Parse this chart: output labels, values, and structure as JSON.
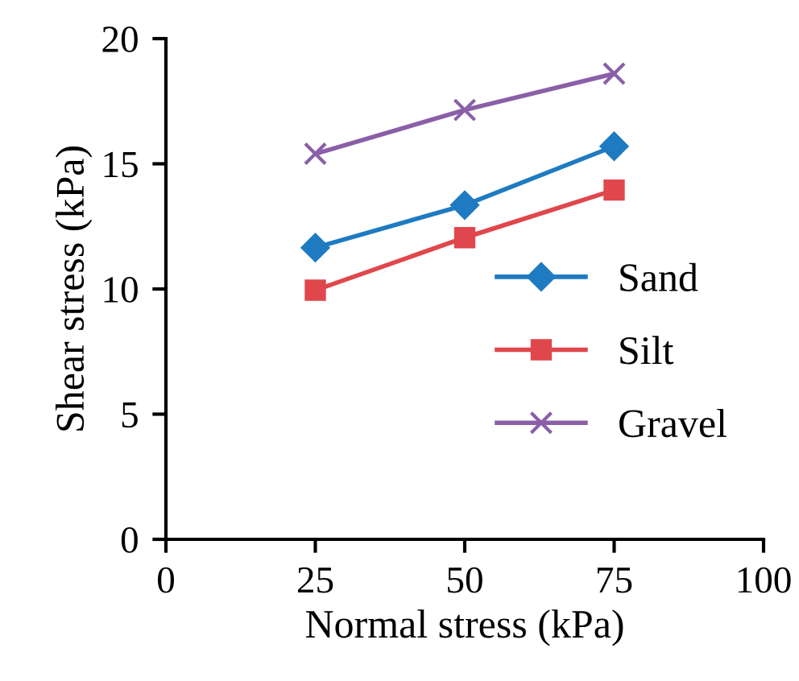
{
  "chart_data": {
    "type": "line",
    "xlabel": "Normal stress (kPa)",
    "ylabel": "Shear stress (kPa)",
    "x": [
      25,
      50,
      75
    ],
    "xlim": [
      0,
      100
    ],
    "xticks": [
      0,
      25,
      50,
      75,
      100
    ],
    "ylim": [
      0,
      20
    ],
    "yticks": [
      0,
      5,
      10,
      15,
      20
    ],
    "grid": false,
    "legend": "right",
    "series": [
      {
        "name": "Sand",
        "color": "#1f7bc1",
        "marker": "diamond",
        "values": [
          11.65,
          13.35,
          15.7
        ]
      },
      {
        "name": "Silt",
        "color": "#e0474c",
        "marker": "square",
        "values": [
          9.95,
          12.05,
          13.95
        ]
      },
      {
        "name": "Gravel",
        "color": "#8a5fa8",
        "marker": "cross",
        "values": [
          15.4,
          17.15,
          18.6
        ]
      }
    ]
  }
}
